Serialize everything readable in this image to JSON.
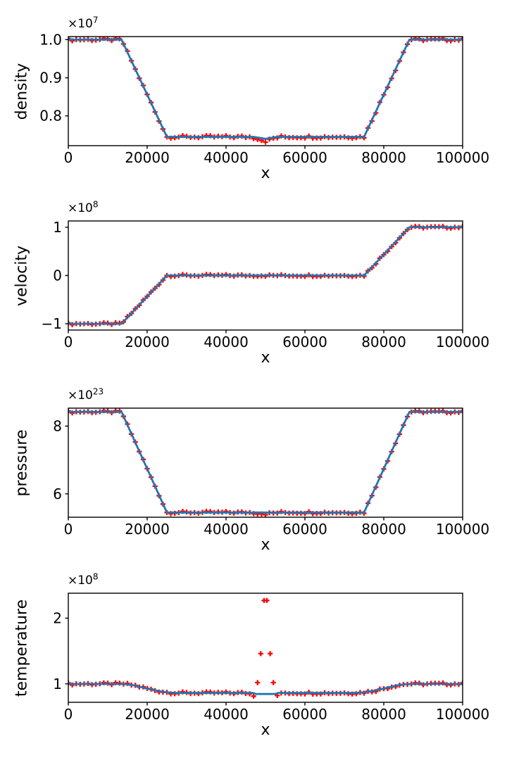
{
  "figure_title": "",
  "colors": {
    "line": "#1f77b4",
    "marker": "#ff0000",
    "axis": "#000000",
    "background": "#ffffff"
  },
  "marker_x": {
    "start": 0,
    "step": 1000,
    "count": 101
  },
  "chart_data": [
    {
      "type": "line",
      "series_note": "blue solid reference line + red plus scatter markers",
      "ylabel": "density",
      "xlabel": "x",
      "exponent_base": "×10",
      "exponent_power": "7",
      "unit_scale": "1e7",
      "xlim": [
        0,
        100000
      ],
      "ylim": [
        0.722,
        1.008
      ],
      "xticks": [
        0,
        20000,
        40000,
        60000,
        80000,
        100000
      ],
      "xtick_labels": [
        "0",
        "20000",
        "40000",
        "60000",
        "80000",
        "100000"
      ],
      "yticks": [
        0.8,
        0.9,
        1.0
      ],
      "ytick_labels": [
        "0.8",
        "0.9",
        "1.0"
      ],
      "grid": false,
      "legend": "none",
      "line": {
        "x": [
          0,
          13500,
          25000,
          47000,
          50000,
          53000,
          75000,
          86500,
          100000
        ],
        "y": [
          1.0,
          1.0,
          0.745,
          0.745,
          0.74,
          0.745,
          0.745,
          1.0,
          1.0
        ]
      },
      "markers": {
        "jitter": 0.0035,
        "y": [
          1.0,
          1.0,
          1.0,
          1.0,
          1.0,
          1.0,
          1.0,
          1.0,
          1.0,
          1.0,
          1.0,
          1.0,
          1.0,
          1.0,
          0.989,
          0.967,
          0.945,
          0.922,
          0.9,
          0.878,
          0.856,
          0.834,
          0.811,
          0.789,
          0.767,
          0.745,
          0.745,
          0.745,
          0.745,
          0.745,
          0.745,
          0.745,
          0.745,
          0.745,
          0.745,
          0.745,
          0.745,
          0.745,
          0.745,
          0.745,
          0.745,
          0.745,
          0.745,
          0.745,
          0.745,
          0.745,
          0.745,
          0.743,
          0.741,
          0.737,
          0.734,
          0.737,
          0.741,
          0.743,
          0.745,
          0.745,
          0.745,
          0.745,
          0.745,
          0.745,
          0.745,
          0.745,
          0.745,
          0.745,
          0.745,
          0.745,
          0.745,
          0.745,
          0.745,
          0.745,
          0.745,
          0.745,
          0.745,
          0.745,
          0.745,
          0.745,
          0.767,
          0.789,
          0.811,
          0.834,
          0.856,
          0.878,
          0.9,
          0.922,
          0.945,
          0.967,
          0.989,
          1.0,
          1.0,
          1.0,
          1.0,
          1.0,
          1.0,
          1.0,
          1.0,
          1.0,
          1.0,
          1.0,
          1.0,
          1.0,
          1.0
        ]
      }
    },
    {
      "type": "line",
      "series_note": "blue solid reference line + red plus scatter markers",
      "ylabel": "velocity",
      "xlabel": "x",
      "exponent_base": "×10",
      "exponent_power": "8",
      "unit_scale": "1e8",
      "xlim": [
        0,
        100000
      ],
      "ylim": [
        -1.13,
        1.13
      ],
      "xticks": [
        0,
        20000,
        40000,
        60000,
        80000,
        100000
      ],
      "xtick_labels": [
        "0",
        "20000",
        "40000",
        "60000",
        "80000",
        "100000"
      ],
      "yticks": [
        -1,
        0,
        1
      ],
      "ytick_labels": [
        "−1",
        "0",
        "1"
      ],
      "grid": false,
      "legend": "none",
      "line": {
        "x": [
          0,
          13500,
          25000,
          75000,
          86500,
          100000
        ],
        "y": [
          -1.0,
          -1.0,
          0.0,
          0.0,
          1.0,
          1.0
        ]
      },
      "markers": {
        "jitter": 0.022,
        "y": [
          -1.0,
          -1.0,
          -1.0,
          -1.0,
          -1.0,
          -1.0,
          -1.0,
          -1.0,
          -1.0,
          -1.0,
          -1.0,
          -1.0,
          -1.0,
          -1.0,
          -0.957,
          -0.87,
          -0.783,
          -0.696,
          -0.609,
          -0.522,
          -0.435,
          -0.348,
          -0.261,
          -0.174,
          -0.087,
          0,
          0,
          0,
          0,
          0,
          0,
          0,
          0,
          0,
          0,
          0,
          0,
          0,
          0,
          0,
          0,
          0,
          0,
          0,
          0,
          0,
          0,
          0,
          0,
          0,
          0,
          0,
          0,
          0,
          0,
          0,
          0,
          0,
          0,
          0,
          0,
          0,
          0,
          0,
          0,
          0,
          0,
          0,
          0,
          0,
          0,
          0,
          0,
          0,
          0,
          0,
          0.087,
          0.174,
          0.261,
          0.348,
          0.435,
          0.522,
          0.609,
          0.696,
          0.783,
          0.87,
          0.957,
          1.0,
          1.0,
          1.0,
          1.0,
          1.0,
          1.0,
          1.0,
          1.0,
          1.0,
          1.0,
          1.0,
          1.0,
          1.0,
          1.0
        ]
      }
    },
    {
      "type": "line",
      "series_note": "blue solid reference line + red plus scatter markers",
      "ylabel": "pressure",
      "xlabel": "x",
      "exponent_base": "×10",
      "exponent_power": "23",
      "unit_scale": "1e23",
      "xlim": [
        0,
        100000
      ],
      "ylim": [
        5.31,
        8.53
      ],
      "xticks": [
        0,
        20000,
        40000,
        60000,
        80000,
        100000
      ],
      "xtick_labels": [
        "0",
        "20000",
        "40000",
        "60000",
        "80000",
        "100000"
      ],
      "yticks": [
        6,
        8
      ],
      "ytick_labels": [
        "6",
        "8"
      ],
      "grid": false,
      "legend": "none",
      "line": {
        "x": [
          0,
          13500,
          25000,
          75000,
          86500,
          100000
        ],
        "y": [
          8.42,
          8.42,
          5.45,
          5.45,
          8.42,
          8.42
        ]
      },
      "markers": {
        "jitter": 0.035,
        "y": [
          8.42,
          8.42,
          8.42,
          8.42,
          8.42,
          8.42,
          8.42,
          8.42,
          8.42,
          8.42,
          8.42,
          8.42,
          8.42,
          8.42,
          8.29,
          8.03,
          7.77,
          7.52,
          7.26,
          7.0,
          6.74,
          6.48,
          6.23,
          5.97,
          5.71,
          5.45,
          5.45,
          5.45,
          5.45,
          5.45,
          5.45,
          5.45,
          5.45,
          5.45,
          5.45,
          5.45,
          5.45,
          5.45,
          5.45,
          5.45,
          5.45,
          5.45,
          5.45,
          5.45,
          5.45,
          5.45,
          5.45,
          5.44,
          5.43,
          5.42,
          5.41,
          5.42,
          5.43,
          5.44,
          5.45,
          5.45,
          5.45,
          5.45,
          5.45,
          5.45,
          5.45,
          5.45,
          5.45,
          5.45,
          5.45,
          5.45,
          5.45,
          5.45,
          5.45,
          5.45,
          5.45,
          5.45,
          5.45,
          5.45,
          5.45,
          5.45,
          5.71,
          5.97,
          6.23,
          6.48,
          6.74,
          7.0,
          7.26,
          7.52,
          7.77,
          8.03,
          8.29,
          8.42,
          8.42,
          8.42,
          8.42,
          8.42,
          8.42,
          8.42,
          8.42,
          8.42,
          8.42,
          8.42,
          8.42,
          8.42,
          8.42
        ]
      }
    },
    {
      "type": "line",
      "series_note": "blue solid reference line + red plus scatter markers; central outlier spikes",
      "ylabel": "temperature",
      "xlabel": "x",
      "exponent_base": "×10",
      "exponent_power": "8",
      "unit_scale": "1e8",
      "xlim": [
        0,
        100000
      ],
      "ylim": [
        0.72,
        2.38
      ],
      "xticks": [
        0,
        20000,
        40000,
        60000,
        80000,
        100000
      ],
      "xtick_labels": [
        "0",
        "20000",
        "40000",
        "60000",
        "80000",
        "100000"
      ],
      "yticks": [
        1,
        2
      ],
      "ytick_labels": [
        "1",
        "2"
      ],
      "grid": false,
      "legend": "none",
      "line": {
        "x": [
          0,
          13000,
          15000,
          17000,
          19000,
          21000,
          23000,
          25000,
          27000,
          28500,
          46800,
          47600,
          52400,
          53200,
          71500,
          73000,
          75000,
          77000,
          79000,
          81000,
          83000,
          85000,
          87000,
          100000
        ],
        "y": [
          1.0,
          1.0,
          0.993,
          0.973,
          0.944,
          0.914,
          0.89,
          0.872,
          0.863,
          0.862,
          0.862,
          0.846,
          0.846,
          0.862,
          0.862,
          0.863,
          0.872,
          0.89,
          0.914,
          0.944,
          0.973,
          0.993,
          1.0,
          1.0
        ]
      },
      "markers": {
        "jitter": 0.018,
        "y": [
          1.0,
          1.0,
          1.0,
          1.0,
          1.0,
          1.0,
          1.0,
          1.0,
          1.0,
          1.0,
          1.0,
          1.0,
          1.0,
          1.0,
          0.998,
          0.993,
          0.985,
          0.973,
          0.959,
          0.944,
          0.929,
          0.914,
          0.901,
          0.89,
          0.88,
          0.872,
          0.866,
          0.863,
          0.862,
          0.862,
          0.862,
          0.862,
          0.862,
          0.862,
          0.862,
          0.862,
          0.862,
          0.862,
          0.862,
          0.862,
          0.862,
          0.862,
          0.862,
          0.862,
          0.862,
          0.862,
          0.848,
          0.826,
          null,
          null,
          null,
          null,
          null,
          0.826,
          0.848,
          0.862,
          0.862,
          0.862,
          0.862,
          0.862,
          0.862,
          0.862,
          0.862,
          0.862,
          0.862,
          0.862,
          0.862,
          0.862,
          0.862,
          0.862,
          0.862,
          0.862,
          0.862,
          0.862,
          0.866,
          0.872,
          0.88,
          0.89,
          0.901,
          0.914,
          0.929,
          0.944,
          0.959,
          0.973,
          0.985,
          0.993,
          0.998,
          1.0,
          1.0,
          1.0,
          1.0,
          1.0,
          1.0,
          1.0,
          1.0,
          1.0,
          1.0,
          1.0,
          1.0,
          1.0,
          1.0
        ]
      },
      "outliers": {
        "x": [
          48000,
          52000,
          48800,
          51200,
          49650,
          50350
        ],
        "y": [
          1.02,
          1.02,
          1.46,
          1.46,
          2.27,
          2.27
        ]
      }
    }
  ]
}
